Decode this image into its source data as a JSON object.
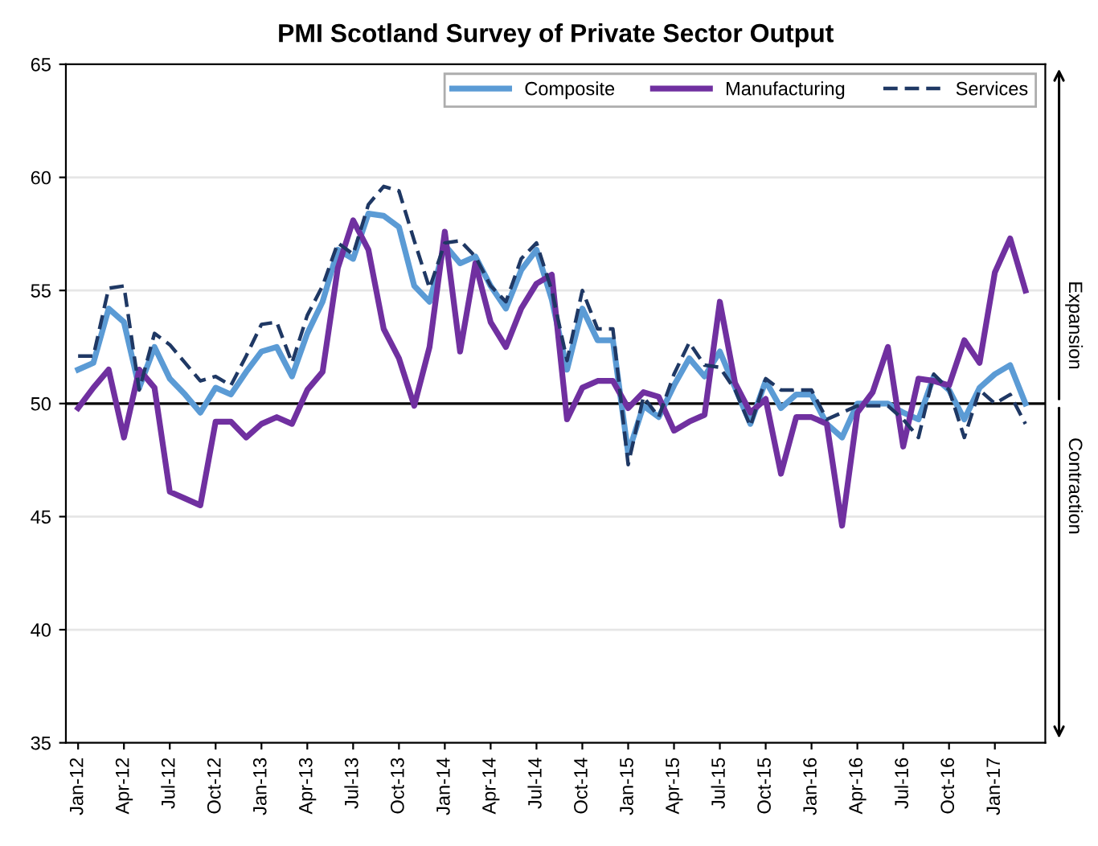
{
  "chart_data": {
    "type": "line",
    "title": "PMI Scotland Survey of Private Sector Output",
    "categories": [
      "Jan-12",
      null,
      null,
      "Apr-12",
      null,
      null,
      "Jul-12",
      null,
      null,
      "Oct-12",
      null,
      null,
      "Jan-13",
      null,
      null,
      "Apr-13",
      null,
      null,
      "Jul-13",
      null,
      null,
      "Oct-13",
      null,
      null,
      "Jan-14",
      null,
      null,
      "Apr-14",
      null,
      null,
      "Jul-14",
      null,
      null,
      "Oct-14",
      null,
      null,
      "Jan-15",
      null,
      null,
      "Apr-15",
      null,
      null,
      "Jul-15",
      null,
      null,
      "Oct-15",
      null,
      null,
      "Jan-16",
      null,
      null,
      "Apr-16",
      null,
      null,
      "Jul-16",
      null,
      null,
      "Oct-16",
      null,
      null,
      "Jan-17",
      null,
      null
    ],
    "series": [
      {
        "name": "Composite",
        "color": "#5b9bd5",
        "line_style": "solid",
        "values": [
          51.5,
          51.8,
          54.2,
          53.6,
          50.7,
          52.5,
          51.1,
          50.4,
          49.6,
          50.7,
          50.4,
          51.4,
          52.3,
          52.5,
          51.2,
          53.1,
          54.5,
          56.8,
          56.4,
          58.4,
          58.3,
          57.8,
          55.2,
          54.5,
          57.0,
          56.2,
          56.5,
          55.2,
          54.2,
          55.9,
          56.8,
          54.6,
          51.5,
          54.2,
          52.8,
          52.8,
          47.8,
          49.9,
          49.4,
          50.8,
          52.0,
          51.2,
          52.3,
          50.7,
          49.1,
          51.0,
          49.8,
          50.4,
          50.4,
          49.1,
          48.5,
          50.0,
          50.0,
          50.0,
          49.6,
          49.3,
          51.2,
          50.6,
          49.3,
          50.7,
          51.3,
          51.7,
          50.0
        ]
      },
      {
        "name": "Manufacturing",
        "color": "#7030a0",
        "line_style": "solid",
        "values": [
          49.8,
          50.7,
          51.5,
          48.5,
          51.5,
          50.7,
          46.1,
          45.8,
          45.5,
          49.2,
          49.2,
          48.5,
          49.1,
          49.4,
          49.1,
          50.6,
          51.4,
          56.0,
          58.1,
          56.8,
          53.3,
          52.0,
          49.9,
          52.5,
          57.6,
          52.3,
          56.2,
          53.6,
          52.5,
          54.2,
          55.3,
          55.7,
          49.3,
          50.7,
          51.0,
          51.0,
          49.8,
          50.5,
          50.3,
          48.8,
          49.2,
          49.5,
          54.5,
          50.9,
          49.6,
          50.2,
          46.9,
          49.4,
          49.4,
          49.1,
          44.6,
          49.6,
          50.5,
          52.5,
          48.1,
          51.1,
          51.0,
          50.8,
          52.8,
          51.8,
          55.8,
          57.3,
          55.0
        ]
      },
      {
        "name": "Services",
        "color": "#1f3864",
        "line_style": "dashed",
        "values": [
          52.1,
          52.1,
          55.1,
          55.2,
          50.6,
          53.1,
          52.6,
          51.8,
          51.0,
          51.2,
          50.8,
          52.1,
          53.5,
          53.6,
          51.8,
          53.9,
          55.2,
          57.1,
          56.6,
          58.8,
          59.6,
          59.4,
          57.2,
          55.1,
          57.1,
          57.2,
          56.5,
          55.2,
          54.5,
          56.4,
          57.1,
          55.0,
          51.9,
          55.0,
          53.3,
          53.3,
          47.3,
          50.3,
          49.4,
          51.3,
          52.7,
          51.7,
          51.6,
          50.6,
          49.0,
          51.1,
          50.6,
          50.6,
          50.6,
          49.3,
          49.6,
          49.9,
          49.9,
          49.9,
          49.3,
          48.5,
          51.3,
          50.6,
          48.5,
          50.6,
          50.0,
          50.4,
          49.1
        ]
      }
    ],
    "ylim": [
      35,
      65
    ],
    "yticks": [
      35,
      40,
      45,
      50,
      55,
      60,
      65
    ],
    "grid": "y",
    "legend": "top right",
    "marker": "none",
    "ref_lines": [
      {
        "axis": "y",
        "value": 50,
        "color": "#000000"
      }
    ],
    "annotations": [
      "Expansion",
      "Contraction"
    ]
  }
}
